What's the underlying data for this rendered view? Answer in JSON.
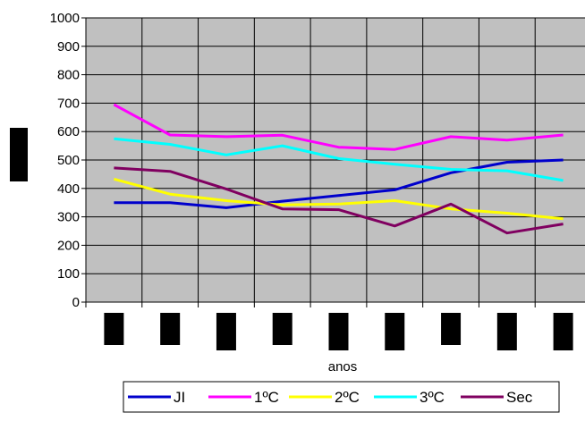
{
  "chart_data": {
    "type": "line",
    "xlabel": "anos",
    "ylabel": "",
    "ylim": [
      0,
      1000
    ],
    "yticks": [
      "0",
      "100",
      "200",
      "300",
      "400",
      "500",
      "600",
      "700",
      "800",
      "900",
      "1000"
    ],
    "grid": true,
    "legend_position": "bottom",
    "categories_count": 9,
    "series": [
      {
        "name": "JI",
        "color": "#0000cc",
        "values": [
          350,
          350,
          332,
          355,
          375,
          395,
          455,
          492,
          500
        ]
      },
      {
        "name": "1ºC",
        "color": "#ff00ff",
        "values": [
          695,
          588,
          582,
          587,
          545,
          537,
          582,
          570,
          588
        ]
      },
      {
        "name": "2ºC",
        "color": "#ffff00",
        "values": [
          433,
          380,
          357,
          342,
          345,
          357,
          328,
          313,
          293
        ]
      },
      {
        "name": "3ºC",
        "color": "#00ffff",
        "values": [
          575,
          555,
          518,
          550,
          505,
          485,
          467,
          462,
          428
        ]
      },
      {
        "name": "Sec",
        "color": "#800060",
        "values": [
          472,
          460,
          398,
          328,
          325,
          268,
          345,
          243,
          275
        ]
      }
    ]
  }
}
